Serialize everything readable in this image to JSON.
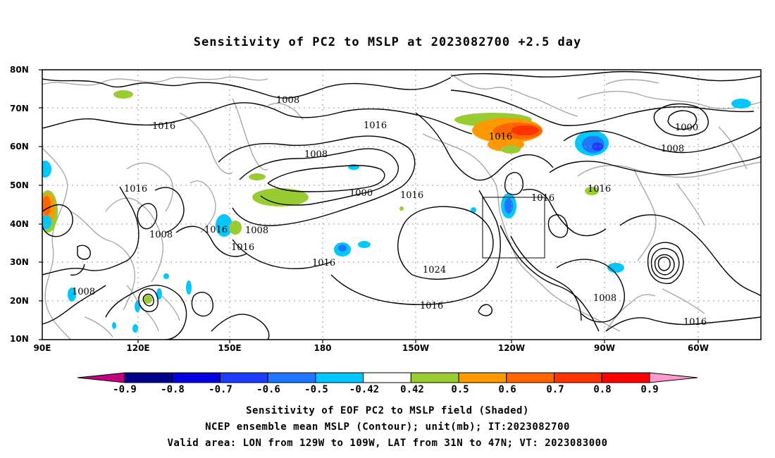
{
  "title": "Sensitivity of PC2 to MSLP at 2023082700 +2.5 day",
  "lat_labels": [
    "80N",
    "70N",
    "60N",
    "50N",
    "40N",
    "30N",
    "20N",
    "10N"
  ],
  "lon_labels": [
    "90E",
    "120E",
    "150E",
    "180",
    "150W",
    "120W",
    "90W",
    "60W"
  ],
  "contour_labels": [
    "1008",
    "1016",
    "1000",
    "1016",
    "1008",
    "1016",
    "1008",
    "1000",
    "1016",
    "1016",
    "1016",
    "1008",
    "1016",
    "1008",
    "1016",
    "1016",
    "1024",
    "1008",
    "1008",
    "1016",
    "1016"
  ],
  "colorbar": {
    "labels": [
      "-0.9",
      "-0.8",
      "-0.7",
      "-0.6",
      "-0.5",
      "-0.42",
      "0.42",
      "0.5",
      "0.6",
      "0.7",
      "0.8",
      "0.9"
    ],
    "colors": [
      "#c0007f",
      "#00008b",
      "#0000e0",
      "#1c3cff",
      "#1e78ff",
      "#00c8ff",
      "#ffffff",
      "#99cc33",
      "#ff9900",
      "#ff6600",
      "#ff3300",
      "#ff0000",
      "#ff99cc"
    ]
  },
  "captions": [
    "Sensitivity of EOF PC2 to MSLP field (Shaded)",
    "NCEP ensemble mean MSLP (Contour); unit(mb); IT:2023082700",
    "Valid area: LON from 129W to 109W, LAT from 31N to 47N; VT: 2023083000"
  ]
}
